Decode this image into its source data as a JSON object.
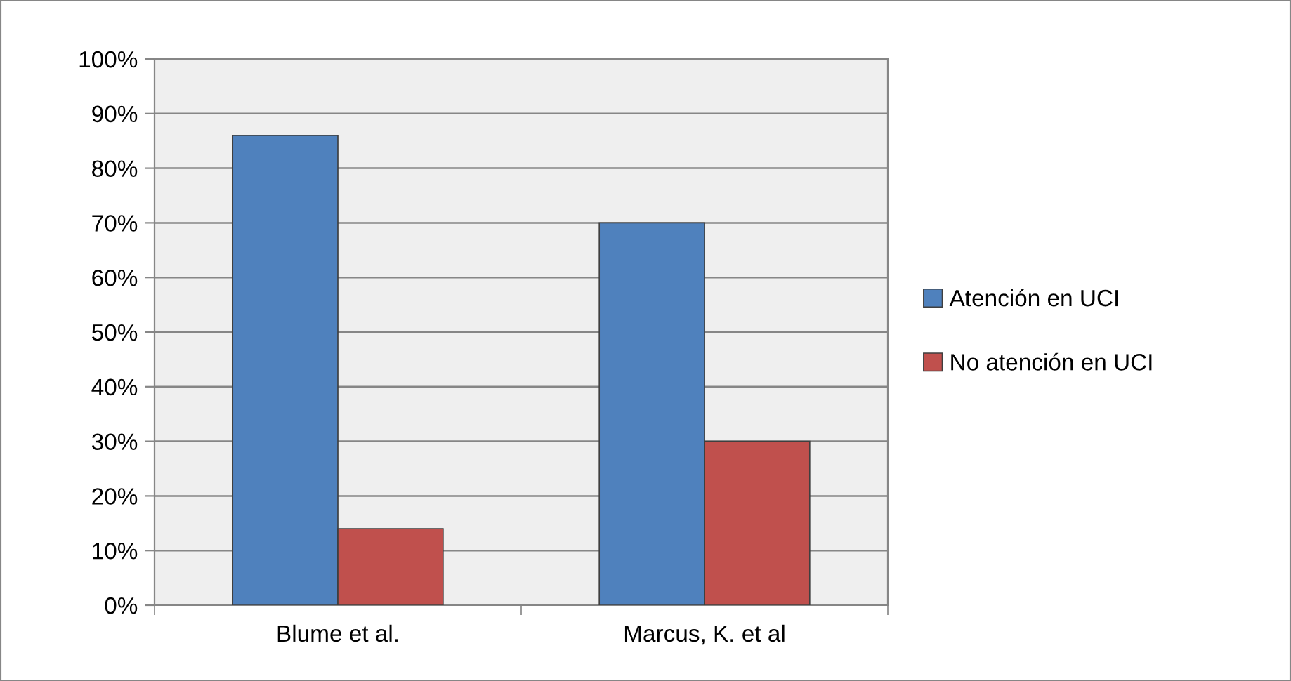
{
  "chart_data": {
    "type": "bar",
    "categories": [
      "Blume et al.",
      "Marcus, K. et al"
    ],
    "series": [
      {
        "name": "Atención en UCI",
        "color": "#4f81bd",
        "values": [
          86,
          70
        ]
      },
      {
        "name": "No atención en UCI",
        "color": "#c0504d",
        "values": [
          14,
          30
        ]
      }
    ],
    "ylim": [
      0,
      100
    ],
    "yticks": [
      {
        "value": 0,
        "label": "0%"
      },
      {
        "value": 10,
        "label": "10%"
      },
      {
        "value": 20,
        "label": "20%"
      },
      {
        "value": 30,
        "label": "30%"
      },
      {
        "value": 40,
        "label": "40%"
      },
      {
        "value": 50,
        "label": "50%"
      },
      {
        "value": 60,
        "label": "60%"
      },
      {
        "value": 70,
        "label": "70%"
      },
      {
        "value": 80,
        "label": "80%"
      },
      {
        "value": 90,
        "label": "90%"
      },
      {
        "value": 100,
        "label": "100%"
      }
    ],
    "grid": "y",
    "legend": "right"
  }
}
